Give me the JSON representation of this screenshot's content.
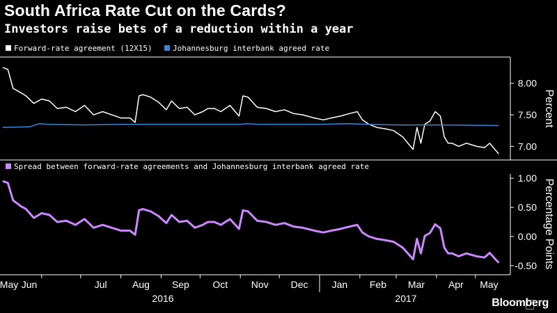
{
  "title": "South Africa Rate Cut on the Cards?",
  "subtitle": "Investors raise bets of a reduction within a year",
  "source": "Bloomberg",
  "icon": "expand-icon",
  "chart_data": [
    {
      "type": "line",
      "ylabel": "Percent",
      "ylim": [
        6.85,
        8.35
      ],
      "yticks": [
        "8.00",
        "7.50",
        "7.00"
      ],
      "ytick_values": [
        8.0,
        7.5,
        7.0
      ],
      "grid": false,
      "legend_position": "top-left",
      "x_months": [
        "May",
        "Jun",
        "Jul",
        "Aug",
        "Sep",
        "Oct",
        "Nov",
        "Dec",
        "Jan",
        "Feb",
        "Mar",
        "Apr",
        "May"
      ],
      "x_years": [
        "2016",
        "2017"
      ],
      "series": [
        {
          "name": "Forward-rate agreement (12X15)",
          "color": "#ffffff",
          "x": [
            "2016-05-02",
            "2016-05-06",
            "2016-05-10",
            "2016-05-16",
            "2016-05-20",
            "2016-05-26",
            "2016-06-01",
            "2016-06-07",
            "2016-06-13",
            "2016-06-20",
            "2016-06-27",
            "2016-07-04",
            "2016-07-11",
            "2016-07-18",
            "2016-07-25",
            "2016-08-01",
            "2016-08-08",
            "2016-08-12",
            "2016-08-15",
            "2016-08-18",
            "2016-08-24",
            "2016-08-30",
            "2016-09-05",
            "2016-09-09",
            "2016-09-15",
            "2016-09-21",
            "2016-09-27",
            "2016-10-03",
            "2016-10-07",
            "2016-10-12",
            "2016-10-17",
            "2016-10-24",
            "2016-10-31",
            "2016-11-03",
            "2016-11-07",
            "2016-11-14",
            "2016-11-21",
            "2016-11-28",
            "2016-12-05",
            "2016-12-12",
            "2016-12-19",
            "2016-12-28",
            "2017-01-04",
            "2017-01-10",
            "2017-01-17",
            "2017-01-24",
            "2017-01-30",
            "2017-02-03",
            "2017-02-08",
            "2017-02-14",
            "2017-02-20",
            "2017-02-27",
            "2017-03-06",
            "2017-03-10",
            "2017-03-14",
            "2017-03-17",
            "2017-03-20",
            "2017-03-23",
            "2017-03-27",
            "2017-03-31",
            "2017-04-04",
            "2017-04-07",
            "2017-04-10",
            "2017-04-13",
            "2017-04-18",
            "2017-04-24",
            "2017-05-02",
            "2017-05-08",
            "2017-05-12",
            "2017-05-16",
            "2017-05-19"
          ],
          "values": [
            8.25,
            8.22,
            7.92,
            7.85,
            7.8,
            7.68,
            7.75,
            7.72,
            7.6,
            7.62,
            7.55,
            7.65,
            7.5,
            7.55,
            7.5,
            7.45,
            7.45,
            7.38,
            7.8,
            7.82,
            7.78,
            7.7,
            7.58,
            7.72,
            7.6,
            7.62,
            7.5,
            7.55,
            7.6,
            7.6,
            7.55,
            7.65,
            7.48,
            7.8,
            7.78,
            7.62,
            7.6,
            7.55,
            7.58,
            7.52,
            7.5,
            7.45,
            7.42,
            7.45,
            7.48,
            7.52,
            7.55,
            7.42,
            7.35,
            7.3,
            7.28,
            7.25,
            7.15,
            7.05,
            6.95,
            7.3,
            7.05,
            7.35,
            7.4,
            7.55,
            7.48,
            7.15,
            7.05,
            7.05,
            7.0,
            7.05,
            7.0,
            6.98,
            7.05,
            6.95,
            6.88
          ]
        },
        {
          "name": "Johannesburg interbank agreed rate",
          "color": "#3b86d6",
          "x": [
            "2016-05-02",
            "2016-05-23",
            "2016-05-30",
            "2016-06-06",
            "2016-07-04",
            "2016-08-01",
            "2016-09-01",
            "2016-10-03",
            "2016-11-01",
            "2016-11-07",
            "2016-11-14",
            "2016-12-01",
            "2017-01-03",
            "2017-01-23",
            "2017-02-06",
            "2017-03-01",
            "2017-04-03",
            "2017-05-19"
          ],
          "values": [
            7.3,
            7.31,
            7.36,
            7.35,
            7.34,
            7.35,
            7.35,
            7.35,
            7.35,
            7.36,
            7.35,
            7.35,
            7.35,
            7.36,
            7.35,
            7.34,
            7.34,
            7.33
          ]
        }
      ]
    },
    {
      "type": "line",
      "ylabel": "Percentage Points",
      "ylim": [
        -0.62,
        1.05
      ],
      "yticks": [
        "1.00",
        "0.50",
        "0.00",
        "-0.50"
      ],
      "ytick_values": [
        1.0,
        0.5,
        0.0,
        -0.5
      ],
      "grid": false,
      "legend_position": "top-left",
      "series": [
        {
          "name": "Spread between forward-rate agreements and Johannesburg interbank agreed rate",
          "color": "#cc88ff",
          "x": [
            "2016-05-02",
            "2016-05-06",
            "2016-05-10",
            "2016-05-16",
            "2016-05-20",
            "2016-05-26",
            "2016-06-01",
            "2016-06-07",
            "2016-06-13",
            "2016-06-20",
            "2016-06-27",
            "2016-07-04",
            "2016-07-11",
            "2016-07-18",
            "2016-07-25",
            "2016-08-01",
            "2016-08-08",
            "2016-08-12",
            "2016-08-15",
            "2016-08-18",
            "2016-08-24",
            "2016-08-30",
            "2016-09-05",
            "2016-09-09",
            "2016-09-15",
            "2016-09-21",
            "2016-09-27",
            "2016-10-03",
            "2016-10-07",
            "2016-10-12",
            "2016-10-17",
            "2016-10-24",
            "2016-10-31",
            "2016-11-03",
            "2016-11-07",
            "2016-11-14",
            "2016-11-21",
            "2016-11-28",
            "2016-12-05",
            "2016-12-12",
            "2016-12-19",
            "2016-12-28",
            "2017-01-04",
            "2017-01-10",
            "2017-01-17",
            "2017-01-24",
            "2017-01-30",
            "2017-02-03",
            "2017-02-08",
            "2017-02-14",
            "2017-02-20",
            "2017-02-27",
            "2017-03-06",
            "2017-03-10",
            "2017-03-14",
            "2017-03-17",
            "2017-03-20",
            "2017-03-23",
            "2017-03-27",
            "2017-03-31",
            "2017-04-04",
            "2017-04-07",
            "2017-04-10",
            "2017-04-13",
            "2017-04-18",
            "2017-04-24",
            "2017-05-02",
            "2017-05-08",
            "2017-05-12",
            "2017-05-16",
            "2017-05-19"
          ],
          "values": [
            0.95,
            0.92,
            0.62,
            0.52,
            0.47,
            0.32,
            0.4,
            0.37,
            0.25,
            0.27,
            0.2,
            0.3,
            0.15,
            0.2,
            0.15,
            0.1,
            0.1,
            0.03,
            0.45,
            0.47,
            0.43,
            0.35,
            0.23,
            0.37,
            0.25,
            0.27,
            0.15,
            0.2,
            0.25,
            0.25,
            0.2,
            0.3,
            0.13,
            0.45,
            0.43,
            0.27,
            0.25,
            0.2,
            0.23,
            0.17,
            0.15,
            0.1,
            0.07,
            0.1,
            0.13,
            0.17,
            0.2,
            0.07,
            0.0,
            -0.04,
            -0.06,
            -0.09,
            -0.19,
            -0.29,
            -0.39,
            -0.04,
            -0.29,
            0.01,
            0.06,
            0.21,
            0.14,
            -0.19,
            -0.29,
            -0.29,
            -0.34,
            -0.29,
            -0.34,
            -0.36,
            -0.28,
            -0.38,
            -0.45
          ]
        }
      ]
    }
  ]
}
